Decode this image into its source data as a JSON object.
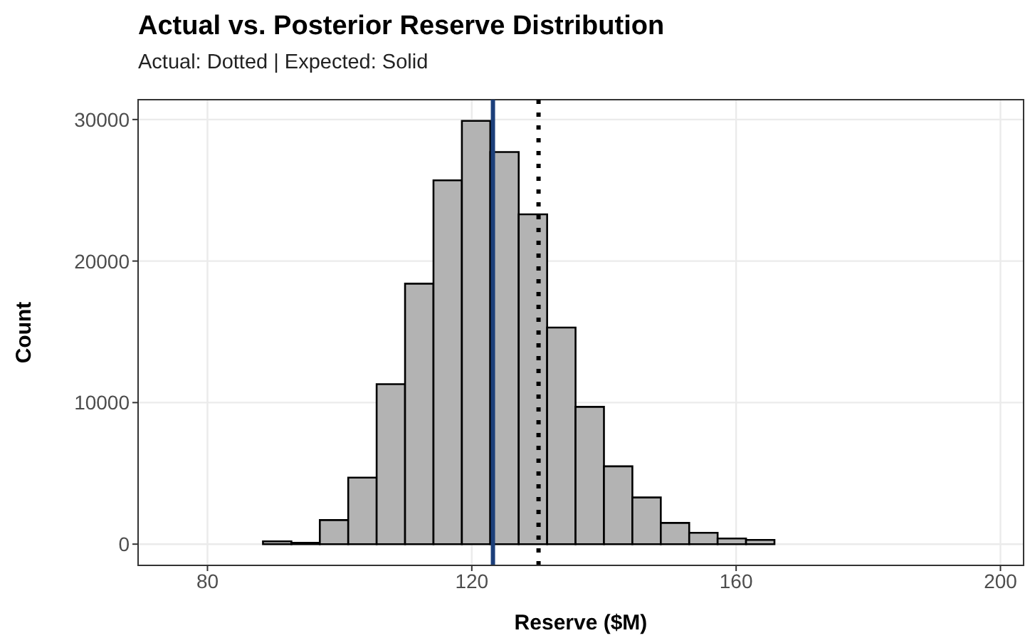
{
  "chart_data": {
    "type": "histogram",
    "title": "Actual vs. Posterior Reserve Distribution",
    "subtitle": "Actual: Dotted | Expected: Solid",
    "xlabel": "Reserve ($M)",
    "ylabel": "Count",
    "bins": [
      75.5,
      79.8,
      84.1,
      88.4,
      92.7,
      97.0,
      101.3,
      105.6,
      109.9,
      114.2,
      118.5,
      122.8,
      127.1,
      131.4,
      135.7,
      140.0,
      144.3,
      148.6,
      152.9,
      157.2,
      161.5,
      165.8,
      170.1,
      174.4,
      178.7,
      183.0,
      187.3,
      191.6,
      195.9
    ],
    "values": [
      0,
      0,
      0,
      200,
      100,
      1700,
      4700,
      11300,
      18400,
      25700,
      29900,
      27700,
      23300,
      15300,
      9700,
      5500,
      3300,
      1500,
      800,
      400,
      300,
      0,
      0,
      0,
      0,
      0,
      0,
      0
    ],
    "color": "#b3b3b3",
    "xlim": [
      69.5,
      203.5
    ],
    "xticks": [
      80,
      120,
      160,
      200
    ],
    "ylim": [
      -1500,
      31400
    ],
    "yticks": [
      0,
      10000,
      20000,
      30000
    ],
    "ref_lines": [
      {
        "axis": "x",
        "value": 123.2,
        "color": "#1c3f7a",
        "line_style": "solid"
      },
      {
        "axis": "x",
        "value": 130.1,
        "color": "#000000",
        "line_style": "dotted"
      }
    ],
    "grid": true
  }
}
